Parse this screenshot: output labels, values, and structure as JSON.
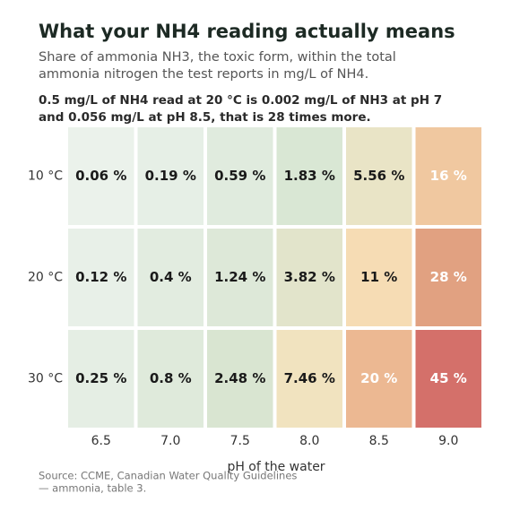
{
  "chart_data": {
    "type": "heatmap",
    "title": "What your NH4 reading actually means",
    "subtitle": [
      "Share of ammonia NH3, the toxic form, within the total",
      "ammonia nitrogen the test reports in mg/L of NH4."
    ],
    "annotation": [
      "0.5 mg/L of NH4 read at 20 °C is 0.002 mg/L of NH3 at pH 7",
      "and 0.056 mg/L at pH 8.5, that is 28 times more."
    ],
    "x_label": "pH of the water",
    "source": [
      "Source: CCME, Canadian Water Quality Guidelines",
      "— ammonia, table 3."
    ],
    "x_categories": [
      "6.5",
      "7.0",
      "7.5",
      "8.0",
      "8.5",
      "9.0"
    ],
    "y_categories": [
      "10 °C",
      "20 °C",
      "30 °C"
    ],
    "values": [
      [
        0.06,
        0.19,
        0.59,
        1.83,
        5.56,
        16
      ],
      [
        0.12,
        0.4,
        1.24,
        3.82,
        11,
        28
      ],
      [
        0.25,
        0.8,
        2.48,
        7.46,
        20,
        45
      ]
    ],
    "value_labels": [
      [
        "0.06 %",
        "0.19 %",
        "0.59 %",
        "1.83 %",
        "5.56 %",
        "16 %"
      ],
      [
        "0.12 %",
        "0.4 %",
        "1.24 %",
        "3.82 %",
        "11 %",
        "28 %"
      ],
      [
        "0.25 %",
        "0.8 %",
        "2.48 %",
        "7.46 %",
        "20 %",
        "45 %"
      ]
    ],
    "colors": [
      [
        "#ebf2eb",
        "#e6efe6",
        "#e0ebde",
        "#d9e7d4",
        "#e9e4c6",
        "#f0c8a0"
      ],
      [
        "#e8f0e8",
        "#e2ece0",
        "#dde8d8",
        "#e2e4cb",
        "#f6dcb4",
        "#e1a181"
      ],
      [
        "#e5eee4",
        "#dfeadb",
        "#d9e5d1",
        "#f1e3bf",
        "#ecb892",
        "#d4706a"
      ]
    ],
    "text_colors": [
      [
        "#1a1a1a",
        "#1a1a1a",
        "#1a1a1a",
        "#1a1a1a",
        "#1a1a1a",
        "#ffffff"
      ],
      [
        "#1a1a1a",
        "#1a1a1a",
        "#1a1a1a",
        "#1a1a1a",
        "#1a1a1a",
        "#ffffff"
      ],
      [
        "#1a1a1a",
        "#1a1a1a",
        "#1a1a1a",
        "#1a1a1a",
        "#ffffff",
        "#ffffff"
      ]
    ]
  }
}
